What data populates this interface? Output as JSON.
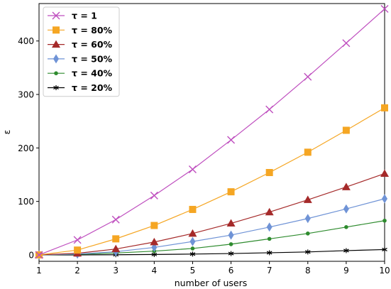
{
  "chart_data": {
    "type": "line",
    "title": "",
    "xlabel": "number of users",
    "ylabel": "ε",
    "x": [
      1,
      2,
      3,
      4,
      5,
      6,
      7,
      8,
      9,
      10
    ],
    "xticks": [
      "1",
      "2",
      "3",
      "4",
      "5",
      "6",
      "7",
      "8",
      "9",
      "10"
    ],
    "yticks": [
      "0",
      "100",
      "200",
      "300",
      "400"
    ],
    "xlim": [
      1,
      10
    ],
    "ylim": [
      -12,
      470
    ],
    "grid": false,
    "legend_position": "top-left",
    "series": [
      {
        "name": "τ = 1",
        "color": "#bf4fbf",
        "marker": "x",
        "values": [
          0,
          28,
          66,
          111,
          160,
          215,
          272,
          333,
          396,
          460
        ]
      },
      {
        "name": "τ = 80%",
        "color": "#f5a623",
        "marker": "square",
        "values": [
          0,
          9,
          30,
          55,
          85,
          118,
          154,
          192,
          233,
          275
        ]
      },
      {
        "name": "τ = 60%",
        "color": "#a52a2a",
        "marker": "triangle",
        "values": [
          0,
          3,
          11,
          24,
          40,
          59,
          80,
          103,
          127,
          152
        ]
      },
      {
        "name": "τ = 50%",
        "color": "#6f93d6",
        "marker": "diamond",
        "values": [
          0,
          1.5,
          6,
          14,
          25,
          37,
          52,
          68,
          86,
          105
        ]
      },
      {
        "name": "τ = 40%",
        "color": "#2e8b2e",
        "marker": "dot",
        "values": [
          0,
          1,
          3.5,
          7,
          12,
          20,
          30,
          40,
          52,
          64
        ]
      },
      {
        "name": "τ = 20%",
        "color": "#000000",
        "marker": "star",
        "values": [
          0,
          0,
          0.3,
          0.8,
          1.5,
          2.5,
          4,
          5.5,
          8,
          10
        ]
      }
    ]
  }
}
